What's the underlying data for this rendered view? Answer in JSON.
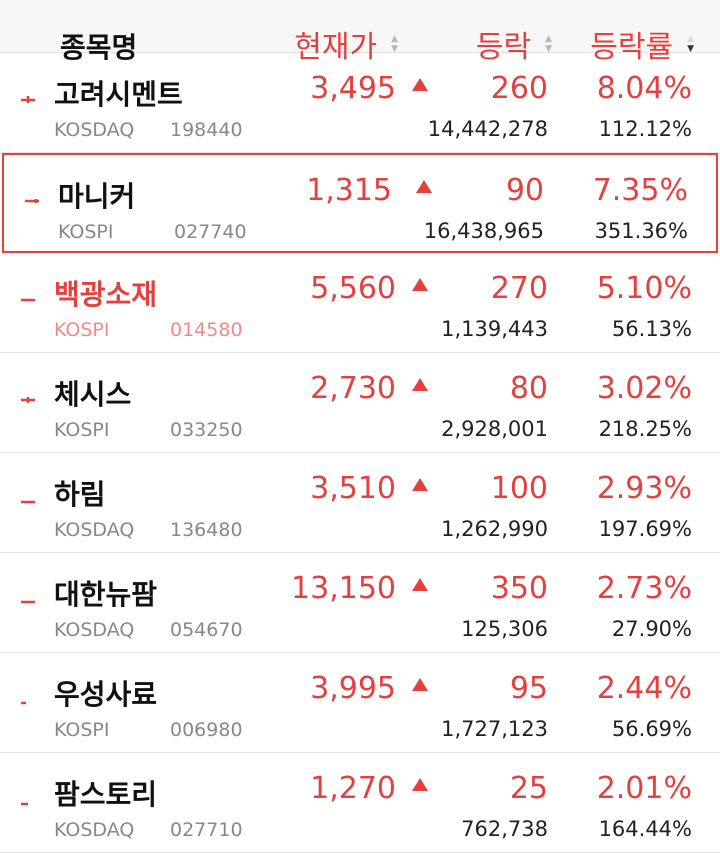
{
  "header": {
    "name_label": "종목명",
    "price_label": "현재가",
    "change_label": "등락",
    "rate_label": "등락률"
  },
  "accent_color": "#e34140",
  "rows": [
    {
      "name": "고려시멘트",
      "market": "KOSDAQ",
      "code": "198440",
      "price": "3,495",
      "change": "260",
      "rate": "8.04%",
      "volume": "14,442,278",
      "vol_rate": "112.12%",
      "trend_icon": "trend-up-line-icon"
    },
    {
      "name": "마니커",
      "market": "KOSPI",
      "code": "027740",
      "price": "1,315",
      "change": "90",
      "rate": "7.35%",
      "volume": "16,438,965",
      "vol_rate": "351.36%",
      "trend_icon": "trend-up-line-icon"
    },
    {
      "name": "백광소재",
      "market": "KOSPI",
      "code": "014580",
      "price": "5,560",
      "change": "270",
      "rate": "5.10%",
      "volume": "1,139,443",
      "vol_rate": "56.13%",
      "trend_icon": "trend-up-line-icon"
    },
    {
      "name": "체시스",
      "market": "KOSPI",
      "code": "033250",
      "price": "2,730",
      "change": "80",
      "rate": "3.02%",
      "volume": "2,928,001",
      "vol_rate": "218.25%",
      "trend_icon": "trend-up-line-icon"
    },
    {
      "name": "하림",
      "market": "KOSDAQ",
      "code": "136480",
      "price": "3,510",
      "change": "100",
      "rate": "2.93%",
      "volume": "1,262,990",
      "vol_rate": "197.69%",
      "trend_icon": "trend-up-line-icon"
    },
    {
      "name": "대한뉴팜",
      "market": "KOSDAQ",
      "code": "054670",
      "price": "13,150",
      "change": "350",
      "rate": "2.73%",
      "volume": "125,306",
      "vol_rate": "27.90%",
      "trend_icon": "trend-up-line-icon"
    },
    {
      "name": "우성사료",
      "market": "KOSPI",
      "code": "006980",
      "price": "3,995",
      "change": "95",
      "rate": "2.44%",
      "volume": "1,727,123",
      "vol_rate": "56.69%",
      "trend_icon": "trend-up-line-icon"
    },
    {
      "name": "팜스토리",
      "market": "KOSDAQ",
      "code": "027710",
      "price": "1,270",
      "change": "25",
      "rate": "2.01%",
      "volume": "762,738",
      "vol_rate": "164.44%",
      "trend_icon": "trend-up-line-icon"
    }
  ]
}
